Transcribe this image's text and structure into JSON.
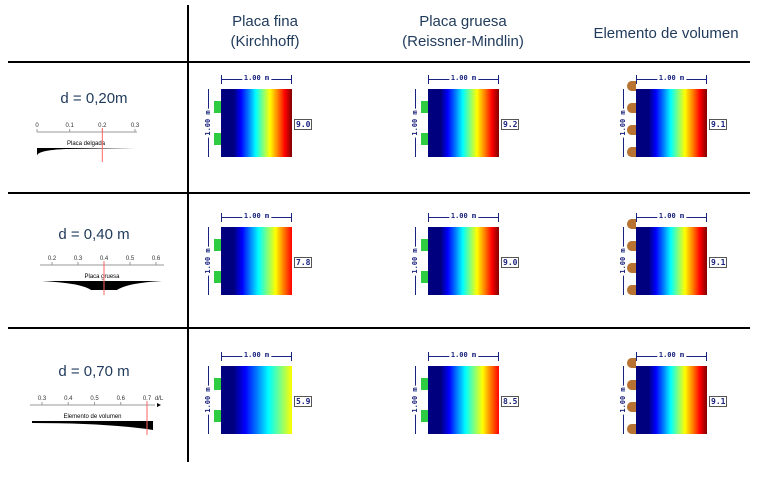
{
  "headers": [
    {
      "line1": "Placa fina",
      "line2": "(Kirchhoff)"
    },
    {
      "line1": "Placa gruesa",
      "line2": "(Reissner-Mindlin)"
    },
    {
      "line1": "Elemento de volumen",
      "line2": ""
    }
  ],
  "rows": [
    {
      "label": "d = 0,20m",
      "scale_ticks": [
        "0",
        "0.1",
        "0.2",
        "0.3"
      ],
      "scale_axis_label": "",
      "region_label": "Placa delgada",
      "marker": 0.2,
      "cells": [
        {
          "dim_x": "1.00 m",
          "dim_y": "1.00 m",
          "value": "9.0"
        },
        {
          "dim_x": "1.00 m",
          "dim_y": "1.00 m",
          "value": "9.2"
        },
        {
          "dim_x": "1.00 m",
          "dim_y": "1.00 m",
          "value": "9.1"
        }
      ]
    },
    {
      "label": "d = 0,40 m",
      "scale_ticks": [
        "0.2",
        "0.3",
        "0.4",
        "0.5",
        "0.6"
      ],
      "scale_axis_label": "",
      "region_label": "Placa gruesa",
      "marker": 0.4,
      "cells": [
        {
          "dim_x": "1.00 m",
          "dim_y": "1.00 m",
          "value": "7.8"
        },
        {
          "dim_x": "1.00 m",
          "dim_y": "1.00 m",
          "value": "9.0"
        },
        {
          "dim_x": "1.00 m",
          "dim_y": "1.00 m",
          "value": "9.1"
        }
      ]
    },
    {
      "label": "d = 0,70 m",
      "scale_ticks": [
        "0.3",
        "0.4",
        "0.5",
        "0.6",
        "0.7"
      ],
      "scale_axis_label": "d/L",
      "region_label": "Elemento de volumen",
      "marker": 0.7,
      "cells": [
        {
          "dim_x": "1.00 m",
          "dim_y": "1.00 m",
          "value": "5.9"
        },
        {
          "dim_x": "1.00 m",
          "dim_y": "1.00 m",
          "value": "8.5"
        },
        {
          "dim_x": "1.00 m",
          "dim_y": "1.00 m",
          "value": "9.1"
        }
      ]
    }
  ],
  "colors": {
    "text": "#1f3a5a",
    "dimension": "#1a237e",
    "support_line": "#2ecc40",
    "support_volume": "#b87333",
    "marker": "#ff6666"
  }
}
